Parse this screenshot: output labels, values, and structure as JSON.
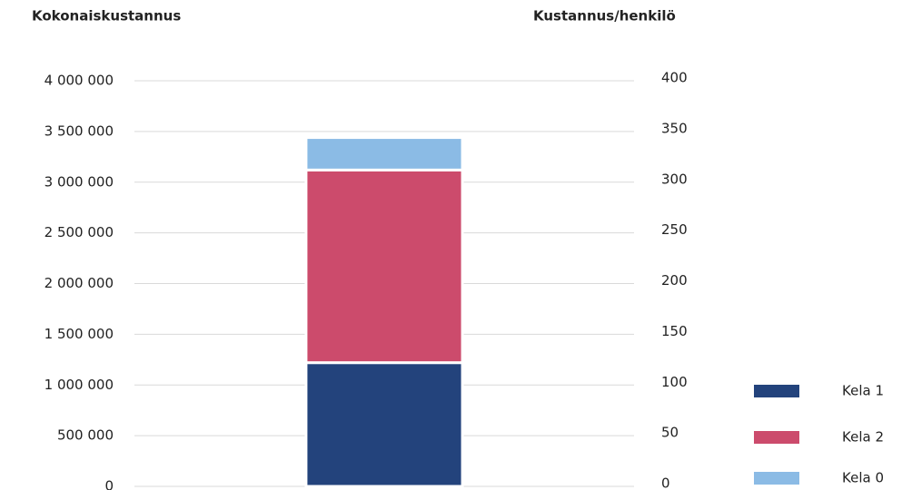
{
  "chart_data": {
    "type": "bar",
    "stacked": true,
    "ylabel": "Kokonaiskustannus",
    "y2label": "Kustannus/henkilö",
    "categories": [
      null
    ],
    "series": [
      {
        "name": "Kela 1",
        "color": "#23437c",
        "values": [
          1220000
        ]
      },
      {
        "name": "Kela 2",
        "color": "#cc4b6c",
        "values": [
          1900000
        ]
      },
      {
        "name": "Kela 0",
        "color": "#8bbbe5",
        "values": [
          320000
        ]
      }
    ],
    "ylim": [
      0,
      4000000
    ],
    "yticks": [
      0,
      {
        "value": 500000,
        "label": "500 000"
      },
      {
        "value": 1000000,
        "label": "1 000 000"
      },
      {
        "value": 1500000,
        "label": "1 500 000"
      },
      {
        "value": 2000000,
        "label": "2 000 000"
      },
      {
        "value": 2500000,
        "label": "2 500 000"
      },
      {
        "value": 3000000,
        "label": "3 000 000"
      },
      {
        "value": 3500000,
        "label": "3 500 000"
      },
      {
        "value": 4000000,
        "label": "4 000 000"
      }
    ],
    "y2lim": [
      0,
      400
    ],
    "y2ticks": [
      0,
      50,
      100,
      150,
      200,
      250,
      300,
      350,
      400
    ],
    "grid": true,
    "legend": "lower right"
  }
}
